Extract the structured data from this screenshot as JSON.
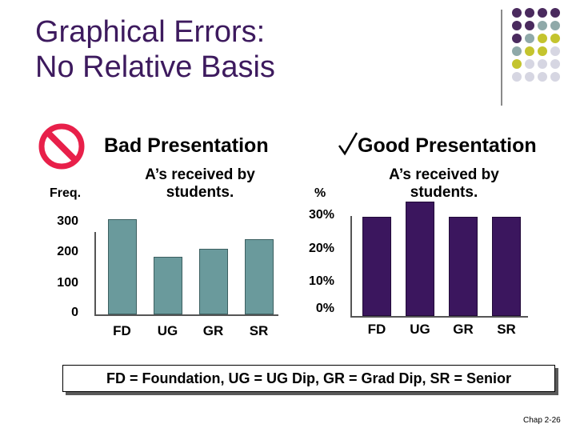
{
  "slide": {
    "title_line1": "Graphical Errors:",
    "title_line2": "No Relative Basis",
    "footer": "Chap 2-26",
    "legend": "FD = Foundation,  UG = UG Dip,  GR = Grad Dip,  SR = Senior"
  },
  "bad": {
    "icon": "prohibited-icon",
    "heading": "Bad Presentation",
    "subtitle_line1": "A’s received by",
    "subtitle_line2": "students.",
    "ylabel": "Freq.",
    "ticks": [
      "300",
      "200",
      "100",
      "0"
    ]
  },
  "good": {
    "icon": "checkmark-icon",
    "heading": "Good Presentation",
    "subtitle_line1": "A’s received by",
    "subtitle_line2": "students.",
    "ylabel": "%",
    "ticks": [
      "30%",
      "20%",
      "10%",
      "0%"
    ]
  },
  "colors": {
    "title": "#3d1a5e",
    "bad_bars": "#6a9a9c",
    "good_bars": "#3b165e",
    "prohibited": "#e8204a"
  },
  "chart_data": [
    {
      "type": "bar",
      "title": "A’s received by students.",
      "ylabel": "Freq.",
      "categories": [
        "FD",
        "UG",
        "GR",
        "SR"
      ],
      "values": [
        290,
        175,
        200,
        230
      ],
      "ylim": [
        0,
        300
      ]
    },
    {
      "type": "bar",
      "title": "A’s received by students.",
      "ylabel": "%",
      "categories": [
        "FD",
        "UG",
        "GR",
        "SR"
      ],
      "values": [
        26,
        30,
        26,
        26
      ],
      "ylim": [
        0,
        30
      ]
    }
  ]
}
